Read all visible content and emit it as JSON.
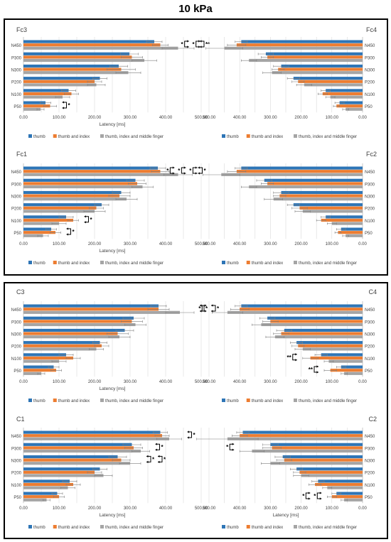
{
  "title": "10 kPa",
  "colors": {
    "thumb": "#2e75b6",
    "thumb_and_index": "#ed7d31",
    "three_fingers": "#a5a5a5",
    "grid": "#d9d9d9",
    "error_bar": "#7f7f7f"
  },
  "legend": [
    "thumb",
    "thumb and index",
    "thumb, index and middle finger"
  ],
  "chart_data": [
    {
      "type": "bar",
      "orientation": "horizontal",
      "label": "Fc3",
      "xlabel": "Latency [ms]",
      "xlim": [
        0,
        500
      ],
      "direction": "ltr",
      "xticks": [
        "0.00",
        "100.00",
        "200.00",
        "300.00",
        "400.00",
        "500.00"
      ],
      "categories": [
        "N450",
        "P300",
        "N300",
        "P200",
        "N100",
        "P50"
      ],
      "series": [
        {
          "name": "thumb",
          "values": [
            368,
            298,
            268,
            215,
            127,
            62
          ],
          "err": [
            22,
            25,
            25,
            20,
            20,
            15
          ]
        },
        {
          "name": "thumb and index",
          "values": [
            385,
            305,
            275,
            200,
            135,
            75
          ],
          "err": [
            22,
            30,
            40,
            20,
            20,
            18
          ]
        },
        {
          "name": "thumb, index and middle finger",
          "values": [
            435,
            340,
            295,
            205,
            110,
            48
          ],
          "err": [
            45,
            35,
            35,
            25,
            20,
            10
          ]
        }
      ],
      "annotations": [
        {
          "text": "**",
          "category": "N450"
        },
        {
          "text": "*",
          "category": "P50"
        }
      ]
    },
    {
      "type": "bar",
      "orientation": "horizontal",
      "label": "Fc4",
      "xlabel": "",
      "xlim": [
        0,
        500
      ],
      "direction": "rtl",
      "xticks": [
        "500.00",
        "400.00",
        "300.00",
        "200.00",
        "100.00",
        "0.00"
      ],
      "categories": [
        "N450",
        "P300",
        "N300",
        "P200",
        "N100",
        "P50"
      ],
      "series": [
        {
          "name": "thumb",
          "values": [
            395,
            315,
            265,
            225,
            120,
            75
          ],
          "err": [
            20,
            25,
            25,
            20,
            15,
            15
          ]
        },
        {
          "name": "thumb and index",
          "values": [
            410,
            310,
            275,
            210,
            130,
            85
          ],
          "err": [
            30,
            20,
            20,
            20,
            15,
            10
          ]
        },
        {
          "name": "thumb, index and middle finger",
          "values": [
            450,
            370,
            295,
            190,
            105,
            55
          ],
          "err": [
            60,
            25,
            30,
            25,
            15,
            10
          ]
        }
      ],
      "annotations": [
        {
          "text": "*",
          "category": "N450"
        },
        {
          "text": "*",
          "category": "N450"
        }
      ]
    },
    {
      "type": "bar",
      "orientation": "horizontal",
      "label": "Fc1",
      "xlabel": "Latency [ms]",
      "xlim": [
        0,
        500
      ],
      "direction": "ltr",
      "xticks": [
        "0.00",
        "100.00",
        "200.00",
        "300.00",
        "400.00",
        "500.00"
      ],
      "categories": [
        "N450",
        "P300",
        "N300",
        "P200",
        "N100",
        "P50"
      ],
      "series": [
        {
          "name": "thumb",
          "values": [
            378,
            315,
            275,
            220,
            120,
            78
          ],
          "err": [
            22,
            25,
            25,
            20,
            20,
            15
          ]
        },
        {
          "name": "thumb and index",
          "values": [
            385,
            320,
            270,
            205,
            140,
            90
          ],
          "err": [
            25,
            25,
            30,
            20,
            15,
            15
          ]
        },
        {
          "name": "thumb, index and middle finger",
          "values": [
            435,
            335,
            290,
            200,
            100,
            55
          ],
          "err": [
            40,
            30,
            30,
            30,
            20,
            15
          ]
        }
      ],
      "annotations": [
        {
          "text": "*",
          "category": "N450"
        },
        {
          "text": "*",
          "category": "N100"
        },
        {
          "text": "*",
          "category": "P50"
        }
      ]
    },
    {
      "type": "bar",
      "orientation": "horizontal",
      "label": "Fc2",
      "xlabel": "",
      "xlim": [
        0,
        500
      ],
      "direction": "rtl",
      "xticks": [
        "500.00",
        "400.00",
        "300.00",
        "200.00",
        "100.00",
        "0.00"
      ],
      "categories": [
        "N450",
        "P300",
        "N300",
        "P200",
        "N100",
        "P50"
      ],
      "series": [
        {
          "name": "thumb",
          "values": [
            395,
            320,
            265,
            225,
            120,
            70
          ],
          "err": [
            20,
            25,
            25,
            20,
            15,
            15
          ]
        },
        {
          "name": "thumb and index",
          "values": [
            410,
            310,
            270,
            205,
            135,
            80
          ],
          "err": [
            30,
            20,
            20,
            25,
            15,
            10
          ]
        },
        {
          "name": "thumb, index and middle finger",
          "values": [
            460,
            370,
            290,
            195,
            100,
            55
          ],
          "err": [
            60,
            25,
            30,
            25,
            15,
            10
          ]
        }
      ],
      "annotations": [
        {
          "text": "*",
          "category": "N450"
        },
        {
          "text": "*",
          "category": "N450"
        },
        {
          "text": "*",
          "category": "N450"
        }
      ]
    },
    {
      "type": "bar",
      "orientation": "horizontal",
      "label": "C3",
      "xlabel": "Latency [ms]",
      "xlim": [
        0,
        500
      ],
      "direction": "ltr",
      "xticks": [
        "0.00",
        "100.00",
        "200.00",
        "300.00",
        "400.00",
        "500.00"
      ],
      "categories": [
        "N450",
        "P300",
        "N300",
        "P200",
        "N100",
        "P50"
      ],
      "series": [
        {
          "name": "thumb",
          "values": [
            380,
            310,
            285,
            215,
            120,
            85
          ],
          "err": [
            22,
            30,
            25,
            20,
            20,
            15
          ]
        },
        {
          "name": "thumb and index",
          "values": [
            380,
            305,
            265,
            220,
            140,
            92
          ],
          "err": [
            30,
            30,
            30,
            20,
            20,
            15
          ]
        },
        {
          "name": "thumb, index and middle finger",
          "values": [
            440,
            315,
            270,
            205,
            100,
            50
          ],
          "err": [
            40,
            30,
            30,
            20,
            20,
            10
          ]
        }
      ],
      "annotations": [
        {
          "text": "*",
          "category": "N450"
        },
        {
          "text": "*",
          "category": "N450"
        }
      ]
    },
    {
      "type": "bar",
      "orientation": "horizontal",
      "label": "C4",
      "xlabel": "",
      "xlim": [
        0,
        500
      ],
      "direction": "rtl",
      "xticks": [
        "500.00",
        "400.00",
        "300.00",
        "200.00",
        "100.00",
        "0.00"
      ],
      "categories": [
        "N450",
        "P300",
        "N300",
        "P200",
        "N100",
        "P50"
      ],
      "series": [
        {
          "name": "thumb",
          "values": [
            395,
            310,
            255,
            215,
            135,
            70
          ],
          "err": [
            20,
            25,
            25,
            20,
            20,
            15
          ]
        },
        {
          "name": "thumb and index",
          "values": [
            400,
            300,
            265,
            210,
            170,
            105
          ],
          "err": [
            30,
            25,
            25,
            20,
            25,
            20
          ]
        },
        {
          "name": "thumb, index and middle finger",
          "values": [
            440,
            330,
            285,
            195,
            110,
            60
          ],
          "err": [
            50,
            30,
            30,
            25,
            15,
            10
          ]
        }
      ],
      "annotations": [
        {
          "text": "*",
          "category": "N450"
        },
        {
          "text": "**",
          "category": "N100"
        },
        {
          "text": "**",
          "category": "P50"
        }
      ]
    },
    {
      "type": "bar",
      "orientation": "horizontal",
      "label": "C1",
      "xlabel": "Latency [ms]",
      "xlim": [
        0,
        500
      ],
      "direction": "ltr",
      "xticks": [
        "0.00",
        "100.00",
        "200.00",
        "300.00",
        "400.00",
        "500.00"
      ],
      "categories": [
        "N450",
        "P300",
        "N300",
        "P200",
        "N100",
        "P50"
      ],
      "series": [
        {
          "name": "thumb",
          "values": [
            385,
            305,
            265,
            215,
            130,
            95
          ],
          "err": [
            20,
            25,
            25,
            20,
            20,
            15
          ]
        },
        {
          "name": "thumb and index",
          "values": [
            390,
            310,
            275,
            200,
            140,
            100
          ],
          "err": [
            20,
            25,
            25,
            20,
            20,
            15
          ]
        },
        {
          "name": "thumb, index and middle finger",
          "values": [
            410,
            330,
            300,
            225,
            125,
            65
          ],
          "err": [
            35,
            25,
            30,
            25,
            20,
            10
          ]
        }
      ],
      "annotations": [
        {
          "text": "*",
          "category": "N450"
        },
        {
          "text": "*",
          "category": "P300"
        },
        {
          "text": "*",
          "category": "N300"
        },
        {
          "text": "*",
          "category": "N300"
        }
      ]
    },
    {
      "type": "bar",
      "orientation": "horizontal",
      "label": "C2",
      "xlabel": "Latency [ms]",
      "xlim": [
        0,
        500
      ],
      "direction": "rtl",
      "xticks": [
        "500.00",
        "400.00",
        "300.00",
        "200.00",
        "100.00",
        "0.00"
      ],
      "categories": [
        "N450",
        "P300",
        "N300",
        "P200",
        "N100",
        "P50"
      ],
      "series": [
        {
          "name": "thumb",
          "values": [
            390,
            300,
            260,
            215,
            145,
            85
          ],
          "err": [
            20,
            25,
            25,
            20,
            20,
            15
          ]
        },
        {
          "name": "thumb and index",
          "values": [
            400,
            295,
            255,
            205,
            155,
            100
          ],
          "err": [
            25,
            30,
            25,
            20,
            20,
            15
          ]
        },
        {
          "name": "thumb, index and middle finger",
          "values": [
            440,
            360,
            300,
            200,
            115,
            60
          ],
          "err": [
            100,
            40,
            30,
            25,
            15,
            10
          ]
        }
      ],
      "annotations": [
        {
          "text": "*",
          "category": "P300"
        },
        {
          "text": "*",
          "category": "P50"
        },
        {
          "text": "*",
          "category": "P50"
        }
      ]
    }
  ]
}
